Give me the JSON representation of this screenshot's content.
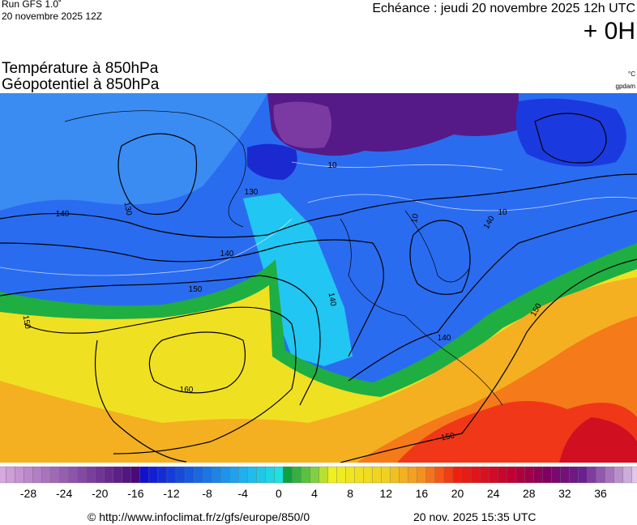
{
  "header": {
    "run": "Run GFS 1.0˚",
    "date": "20 novembre 2025 12Z",
    "echeance": "Echéance : jeudi 20 novembre 2025 12h UTC",
    "offset": "+ 0H"
  },
  "titles": [
    "Température à 850hPa",
    "Géopotentiel à 850hPa"
  ],
  "units": {
    "temperature": "°C",
    "geopotential": "gpdam"
  },
  "map": {
    "contour_labels": [
      "140",
      "130",
      "130",
      "140",
      "150",
      "150",
      "160",
      "140",
      "140",
      "140",
      "150",
      "150",
      "10",
      "10",
      "10"
    ]
  },
  "colorbar": {
    "ticks": [
      -28,
      -24,
      -20,
      -16,
      -12,
      -8,
      -4,
      0,
      4,
      8,
      12,
      16,
      20,
      24,
      28,
      32,
      36
    ]
  },
  "footer": {
    "url": "© http://www.infoclimat.fr/z/gfs/europe/850/0",
    "timestamp": "20 nov. 2025 15:35 UTC"
  }
}
